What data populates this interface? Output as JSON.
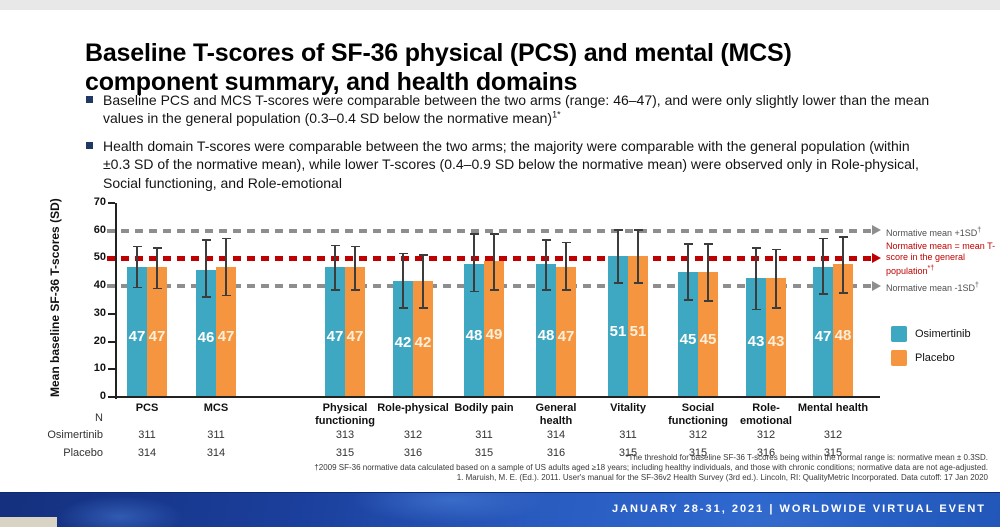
{
  "slide": {
    "title": "Baseline T-scores of SF-36 physical (PCS) and mental (MCS)\ncomponent summary, and health domains",
    "bullets": [
      {
        "text": "Baseline PCS and MCS T-scores were comparable between the two arms (range: 46–47), and were only slightly lower than the mean values in the general population (0.3–0.4 SD below the normative mean)",
        "sup": "1*"
      },
      {
        "text": "Health domain T-scores were comparable between the two arms; the majority were comparable with the general population (within ±0.3 SD of the normative mean), while lower T-scores (0.4–0.9 SD below the normative mean) were observed only in Role-physical, Social functioning, and Role-emotional",
        "sup": ""
      }
    ]
  },
  "chart_data": {
    "type": "bar",
    "title": "",
    "xlabel": "",
    "ylabel": "Mean baseline SF-36 T-scores (SD)",
    "ylim": [
      0,
      70
    ],
    "yticks": [
      0,
      10,
      20,
      30,
      40,
      50,
      60,
      70
    ],
    "grid": false,
    "legend_position": "right",
    "categories": [
      "PCS",
      "MCS",
      "Physical\nfunctioning",
      "Role-physical",
      "Bodily pain",
      "General\nhealth",
      "Vitality",
      "Social\nfunctioning",
      "Role-\nemotional",
      "Mental health"
    ],
    "series": [
      {
        "name": "Osimertinib",
        "color": "#3EA7C1",
        "label_color": "#FFFFFF",
        "values": [
          47,
          46,
          47,
          42,
          48,
          48,
          51,
          45,
          43,
          47
        ],
        "err_lo": [
          39.5,
          36,
          38.5,
          32,
          38,
          38.5,
          41,
          35,
          31.5,
          37
        ],
        "err_hi": [
          54.5,
          57,
          55,
          52,
          59,
          57,
          60.5,
          55.5,
          54,
          57.5
        ]
      },
      {
        "name": "Placebo",
        "color": "#F5953F",
        "label_color": "#FBEFD9",
        "values": [
          47,
          47,
          47,
          42,
          49,
          47,
          51,
          45,
          43,
          48
        ],
        "err_lo": [
          39,
          36.5,
          38.5,
          32,
          38.5,
          38.5,
          41,
          34.5,
          32,
          37.5
        ],
        "err_hi": [
          54,
          57.5,
          54.5,
          51.5,
          59,
          56,
          60.5,
          55.5,
          53.5,
          58
        ]
      }
    ],
    "reference_lines": [
      {
        "value": 60,
        "label": "Normative mean +1SD",
        "sup": "†",
        "color": "#8E8E8E",
        "label_color": "#4f4f4f",
        "thickness": 4
      },
      {
        "value": 50,
        "label": "Normative mean = mean T-score in the general population",
        "sup": "*†",
        "color": "#C00000",
        "label_color": "#C00000",
        "thickness": 5
      },
      {
        "value": 40,
        "label": "Normative mean -1SD",
        "sup": "†",
        "color": "#8E8E8E",
        "label_color": "#4f4f4f",
        "thickness": 4
      }
    ],
    "n_table": {
      "row_header": "N",
      "rows": [
        {
          "label": "Osimertinib",
          "values": [
            311,
            311,
            313,
            312,
            311,
            314,
            311,
            312,
            312,
            312
          ]
        },
        {
          "label": "Placebo",
          "values": [
            314,
            314,
            315,
            316,
            315,
            316,
            315,
            315,
            316,
            315
          ]
        }
      ]
    }
  },
  "footnotes": [
    "*The threshold for baseline SF-36 T-scores being within the normal range is: normative mean ± 0.3SD.",
    "†2009 SF-36 normative data calculated based on a sample of US adults aged ≥18 years; including healthy individuals, and those with chronic conditions; normative data are not age-adjusted.",
    "1. Maruish, M. E. (Ed.). 2011. User's manual for the SF-36v2 Health Survey (3rd ed.). Lincoln, RI: QualityMetric Incorporated. Data cutoff: 17 Jan 2020"
  ],
  "banner": {
    "text": "JANUARY 28-31, 2021 | WORLDWIDE VIRTUAL EVENT"
  }
}
